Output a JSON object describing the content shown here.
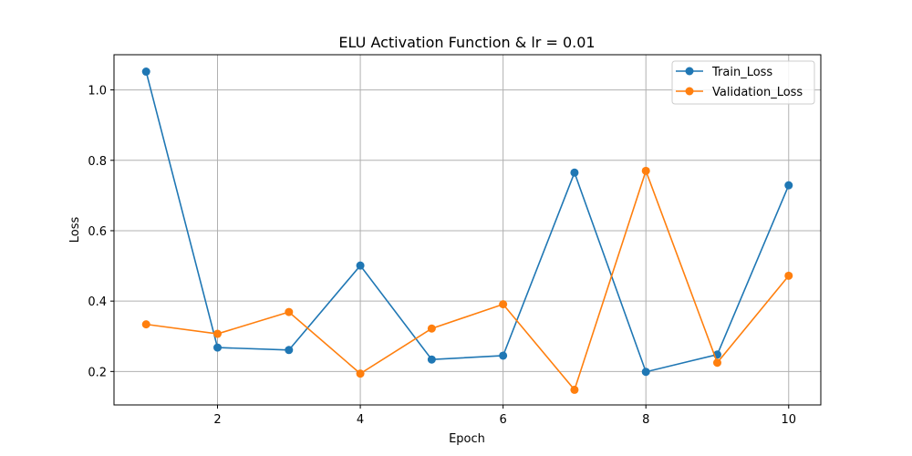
{
  "chart_data": {
    "type": "line",
    "title": "ELU Activation Function & lr = 0.01",
    "xlabel": "Epoch",
    "ylabel": "Loss",
    "x": [
      1,
      2,
      3,
      4,
      5,
      6,
      7,
      8,
      9,
      10
    ],
    "xlim": [
      0.55,
      10.45
    ],
    "ylim": [
      0.105,
      1.1
    ],
    "xticks": [
      2,
      4,
      6,
      8,
      10
    ],
    "yticks": [
      0.2,
      0.4,
      0.6,
      0.8,
      1.0
    ],
    "xtick_labels": [
      "2",
      "4",
      "6",
      "8",
      "10"
    ],
    "ytick_labels": [
      "0.2",
      "0.4",
      "0.6",
      "0.8",
      "1.0"
    ],
    "grid": true,
    "legend_position": "top-right",
    "series": [
      {
        "name": "Train_Loss",
        "color": "#1f77b4",
        "values": [
          1.052,
          0.268,
          0.261,
          0.501,
          0.234,
          0.245,
          0.765,
          0.199,
          0.248,
          0.729
        ]
      },
      {
        "name": "Validation_Loss",
        "color": "#ff7f0e",
        "values": [
          0.334,
          0.307,
          0.369,
          0.194,
          0.322,
          0.391,
          0.148,
          0.77,
          0.225,
          0.472
        ]
      }
    ]
  }
}
